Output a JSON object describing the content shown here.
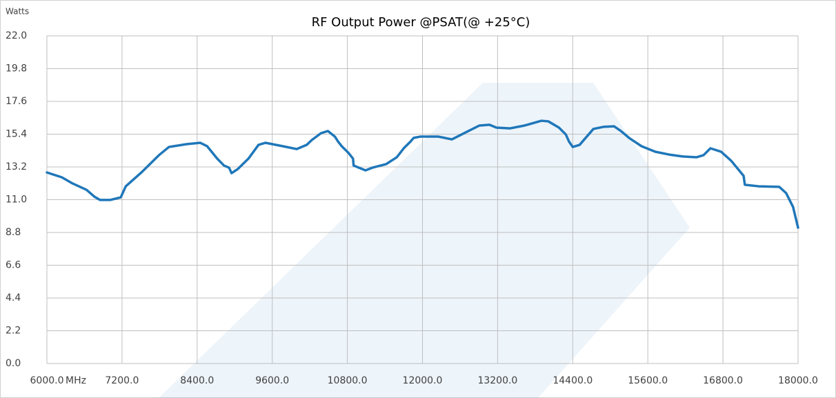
{
  "chart_data": {
    "type": "line",
    "title": "RF Output Power @PSAT(@ +25°C)",
    "y_label": "Watts",
    "x_label": "MHz",
    "x": [
      6000,
      6240,
      6410,
      6630,
      6760,
      6850,
      7010,
      7180,
      7260,
      7510,
      7790,
      7950,
      8230,
      8450,
      8560,
      8720,
      8830,
      8910,
      8950,
      9050,
      9220,
      9380,
      9490,
      9770,
      9990,
      10150,
      10230,
      10380,
      10490,
      10600,
      10650,
      10710,
      10820,
      10890,
      10900,
      11090,
      11200,
      11420,
      11590,
      11700,
      11810,
      11860,
      11970,
      12250,
      12470,
      12690,
      12910,
      13070,
      13180,
      13400,
      13630,
      13900,
      14010,
      14180,
      14290,
      14340,
      14400,
      14510,
      14730,
      14890,
      15060,
      15170,
      15300,
      15500,
      15720,
      15940,
      16160,
      16380,
      16490,
      16600,
      16770,
      16930,
      17040,
      17130,
      17150,
      17370,
      17700,
      17810,
      17920,
      18000
    ],
    "series": [
      {
        "name": "RF Output Power",
        "color": "#1f77b9",
        "values": [
          12.83,
          12.5,
          12.09,
          11.67,
          11.2,
          10.98,
          10.98,
          11.16,
          11.9,
          12.83,
          13.99,
          14.54,
          14.73,
          14.82,
          14.59,
          13.76,
          13.29,
          13.15,
          12.78,
          13.06,
          13.76,
          14.68,
          14.82,
          14.59,
          14.4,
          14.68,
          15.0,
          15.47,
          15.61,
          15.24,
          14.91,
          14.59,
          14.13,
          13.76,
          13.29,
          12.97,
          13.15,
          13.39,
          13.85,
          14.45,
          14.91,
          15.15,
          15.24,
          15.24,
          15.05,
          15.52,
          15.98,
          16.03,
          15.84,
          15.79,
          15.98,
          16.3,
          16.26,
          15.84,
          15.38,
          14.91,
          14.54,
          14.68,
          15.75,
          15.89,
          15.93,
          15.61,
          15.15,
          14.59,
          14.22,
          14.03,
          13.9,
          13.85,
          13.99,
          14.45,
          14.22,
          13.62,
          13.06,
          12.6,
          12.0,
          11.9,
          11.86,
          11.44,
          10.51,
          9.12
        ]
      }
    ],
    "xlim": [
      6000,
      18000
    ],
    "xticks": [
      {
        "value": 6000,
        "label": "6000.0"
      },
      {
        "value": 7200,
        "label": "7200.0"
      },
      {
        "value": 8400,
        "label": "8400.0"
      },
      {
        "value": 9600,
        "label": "9600.0"
      },
      {
        "value": 10800,
        "label": "10800.0"
      },
      {
        "value": 12000,
        "label": "12000.0"
      },
      {
        "value": 13200,
        "label": "13200.0"
      },
      {
        "value": 14400,
        "label": "14400.0"
      },
      {
        "value": 15600,
        "label": "15600.0"
      },
      {
        "value": 16800,
        "label": "16800.0"
      },
      {
        "value": 18000,
        "label": "18000.0"
      }
    ],
    "ylim": [
      0,
      22
    ],
    "yticks": [
      {
        "value": 0,
        "label": "0.0"
      },
      2.2,
      4.4,
      6.6,
      8.8,
      {
        "value": 11,
        "label": "11.0"
      },
      13.2,
      15.4,
      17.6,
      19.8,
      {
        "value": 22,
        "label": "22.0"
      }
    ],
    "grid": true
  }
}
